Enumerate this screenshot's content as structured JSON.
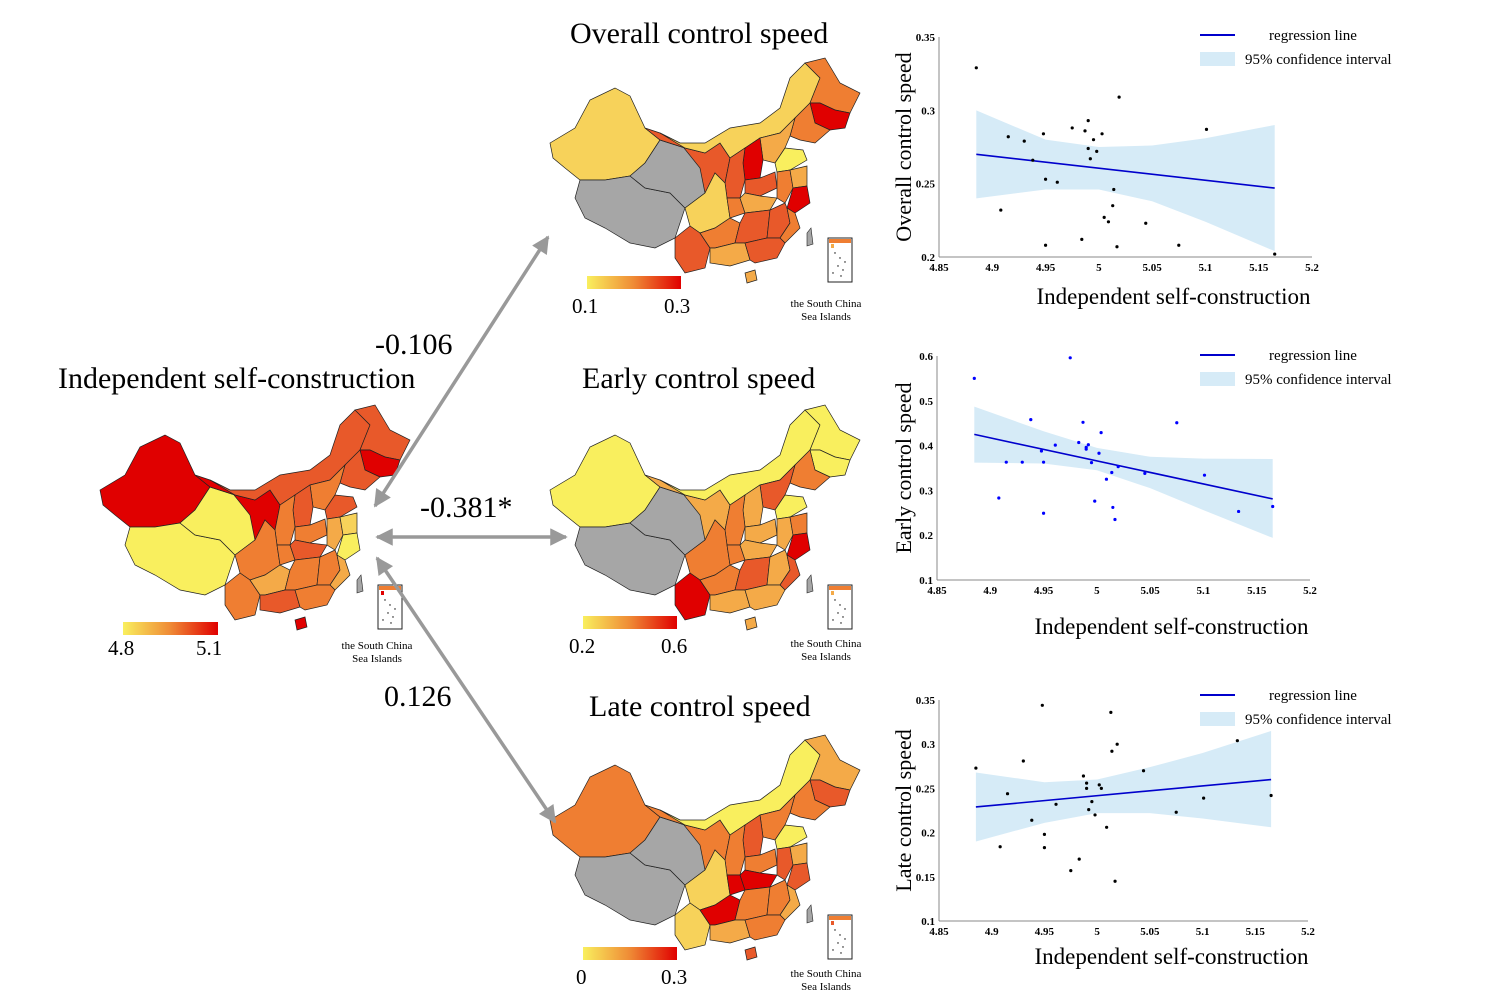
{
  "figure": {
    "source_panel": {
      "title": "Independent self-construction",
      "colorbar": {
        "min_label": "4.8",
        "max_label": "5.1",
        "low_color": "#f9ef5e",
        "high_color": "#e00000"
      },
      "inset_label_line1": "the South China",
      "inset_label_line2": "Sea Islands"
    },
    "arrows": [
      {
        "target": "Overall control speed",
        "coefficient": "-0.106"
      },
      {
        "target": "Early control speed",
        "coefficient": "-0.381*"
      },
      {
        "target": "Late control speed",
        "coefficient": "0.126"
      }
    ],
    "target_panels": [
      {
        "title": "Overall control speed",
        "colorbar": {
          "min_label": "0.1",
          "max_label": "0.3"
        },
        "inset_label_line1": "the South China",
        "inset_label_line2": "Sea Islands"
      },
      {
        "title": "Early control speed",
        "colorbar": {
          "min_label": "0.2",
          "max_label": "0.6"
        },
        "inset_label_line1": "the South China",
        "inset_label_line2": "Sea Islands"
      },
      {
        "title": "Late control speed",
        "colorbar": {
          "min_label": "0",
          "max_label": "0.3"
        },
        "inset_label_line1": "the South China",
        "inset_label_line2": "Sea Islands"
      }
    ],
    "colors": {
      "arrow": "#999999",
      "no_data": "#a6a6a6",
      "ci_fill": "#d6ebf7",
      "regression": "#0000cc"
    }
  },
  "chart_data": [
    {
      "type": "scatter",
      "title": "",
      "xlabel": "Independent self-construction",
      "ylabel": "Overall control speed",
      "xlim": [
        4.85,
        5.2
      ],
      "ylim": [
        0.2,
        0.35
      ],
      "xticks": [
        "4.85",
        "4.9",
        "4.95",
        "5",
        "5.05",
        "5.1",
        "5.15",
        "5.2"
      ],
      "yticks": [
        "0.2",
        "0.25",
        "0.3",
        "0.35"
      ],
      "legend": [
        "regression line",
        "95% confidence interval"
      ],
      "legend_position": "top-right",
      "point_color": "#000000",
      "points": [
        [
          4.885,
          0.329
        ],
        [
          4.915,
          0.282
        ],
        [
          4.93,
          0.279
        ],
        [
          4.938,
          0.266
        ],
        [
          4.948,
          0.284
        ],
        [
          4.95,
          0.253
        ],
        [
          4.961,
          0.251
        ],
        [
          4.908,
          0.232
        ],
        [
          4.95,
          0.208
        ],
        [
          4.975,
          0.288
        ],
        [
          4.987,
          0.286
        ],
        [
          4.99,
          0.293
        ],
        [
          4.99,
          0.274
        ],
        [
          4.992,
          0.267
        ],
        [
          4.995,
          0.28
        ],
        [
          4.998,
          0.272
        ],
        [
          5.003,
          0.284
        ],
        [
          5.019,
          0.309
        ],
        [
          5.014,
          0.246
        ],
        [
          5.013,
          0.235
        ],
        [
          5.005,
          0.227
        ],
        [
          5.009,
          0.224
        ],
        [
          4.984,
          0.212
        ],
        [
          5.017,
          0.207
        ],
        [
          5.044,
          0.223
        ],
        [
          5.075,
          0.208
        ],
        [
          5.101,
          0.287
        ],
        [
          5.165,
          0.202
        ]
      ],
      "regression": {
        "x": [
          4.885,
          5.165
        ],
        "y": [
          0.27,
          0.247
        ]
      },
      "ci": {
        "x": [
          4.885,
          4.95,
          5.0,
          5.05,
          5.1,
          5.165
        ],
        "upper": [
          0.3,
          0.28,
          0.275,
          0.276,
          0.281,
          0.29
        ],
        "lower": [
          0.24,
          0.246,
          0.246,
          0.238,
          0.224,
          0.204
        ]
      }
    },
    {
      "type": "scatter",
      "title": "",
      "xlabel": "Independent self-construction",
      "ylabel": "Early control speed",
      "xlim": [
        4.85,
        5.2
      ],
      "ylim": [
        0.1,
        0.6
      ],
      "xticks": [
        "4.85",
        "4.9",
        "4.95",
        "5",
        "5.05",
        "5.1",
        "5.15",
        "5.2"
      ],
      "yticks": [
        "0.1",
        "0.2",
        "0.3",
        "0.4",
        "0.5",
        "0.6"
      ],
      "legend": [
        "regression line",
        "95% confidence interval"
      ],
      "legend_position": "top-right",
      "point_color": "#0000ff",
      "points": [
        [
          4.885,
          0.55
        ],
        [
          4.975,
          0.596
        ],
        [
          4.915,
          0.363
        ],
        [
          4.93,
          0.363
        ],
        [
          4.938,
          0.458
        ],
        [
          4.948,
          0.388
        ],
        [
          4.95,
          0.363
        ],
        [
          4.908,
          0.283
        ],
        [
          4.95,
          0.249
        ],
        [
          4.961,
          0.401
        ],
        [
          4.983,
          0.407
        ],
        [
          4.987,
          0.452
        ],
        [
          4.99,
          0.396
        ],
        [
          4.99,
          0.392
        ],
        [
          4.992,
          0.402
        ],
        [
          4.995,
          0.362
        ],
        [
          5.002,
          0.383
        ],
        [
          5.004,
          0.429
        ],
        [
          4.998,
          0.276
        ],
        [
          5.009,
          0.325
        ],
        [
          5.014,
          0.34
        ],
        [
          5.015,
          0.262
        ],
        [
          5.017,
          0.235
        ],
        [
          5.02,
          0.353
        ],
        [
          5.045,
          0.338
        ],
        [
          5.075,
          0.451
        ],
        [
          5.101,
          0.334
        ],
        [
          5.133,
          0.253
        ],
        [
          5.165,
          0.264
        ]
      ],
      "regression": {
        "x": [
          4.885,
          5.165
        ],
        "y": [
          0.425,
          0.281
        ]
      },
      "ci": {
        "x": [
          4.885,
          4.95,
          5.0,
          5.05,
          5.1,
          5.165
        ],
        "upper": [
          0.487,
          0.432,
          0.395,
          0.375,
          0.371,
          0.37
        ],
        "lower": [
          0.362,
          0.36,
          0.345,
          0.305,
          0.256,
          0.194
        ]
      }
    },
    {
      "type": "scatter",
      "title": "",
      "xlabel": "Independent self-construction",
      "ylabel": "Late control speed",
      "xlim": [
        4.85,
        5.2
      ],
      "ylim": [
        0.1,
        0.35
      ],
      "xticks": [
        "4.85",
        "4.9",
        "4.95",
        "5",
        "5.05",
        "5.1",
        "5.15",
        "5.2"
      ],
      "yticks": [
        "0.1",
        "0.15",
        "0.2",
        "0.25",
        "0.3",
        "0.35"
      ],
      "legend": [
        "regression line",
        "95% confidence interval"
      ],
      "legend_position": "top-right",
      "point_color": "#000000",
      "points": [
        [
          4.885,
          0.273
        ],
        [
          4.948,
          0.344
        ],
        [
          5.013,
          0.336
        ],
        [
          5.019,
          0.3
        ],
        [
          5.014,
          0.292
        ],
        [
          4.93,
          0.281
        ],
        [
          4.915,
          0.244
        ],
        [
          4.908,
          0.184
        ],
        [
          4.938,
          0.214
        ],
        [
          4.95,
          0.198
        ],
        [
          4.95,
          0.183
        ],
        [
          4.961,
          0.232
        ],
        [
          4.987,
          0.264
        ],
        [
          4.99,
          0.256
        ],
        [
          4.99,
          0.25
        ],
        [
          4.992,
          0.226
        ],
        [
          4.995,
          0.235
        ],
        [
          4.998,
          0.22
        ],
        [
          5.002,
          0.254
        ],
        [
          5.004,
          0.25
        ],
        [
          5.009,
          0.206
        ],
        [
          4.975,
          0.157
        ],
        [
          4.983,
          0.17
        ],
        [
          5.017,
          0.145
        ],
        [
          5.044,
          0.27
        ],
        [
          5.075,
          0.223
        ],
        [
          5.101,
          0.239
        ],
        [
          5.133,
          0.304
        ],
        [
          5.165,
          0.242
        ]
      ],
      "regression": {
        "x": [
          4.885,
          5.165
        ],
        "y": [
          0.229,
          0.26
        ]
      },
      "ci": {
        "x": [
          4.885,
          4.95,
          5.0,
          5.05,
          5.1,
          5.165
        ],
        "upper": [
          0.268,
          0.257,
          0.26,
          0.274,
          0.29,
          0.315
        ],
        "lower": [
          0.19,
          0.211,
          0.222,
          0.222,
          0.216,
          0.206
        ]
      }
    }
  ]
}
